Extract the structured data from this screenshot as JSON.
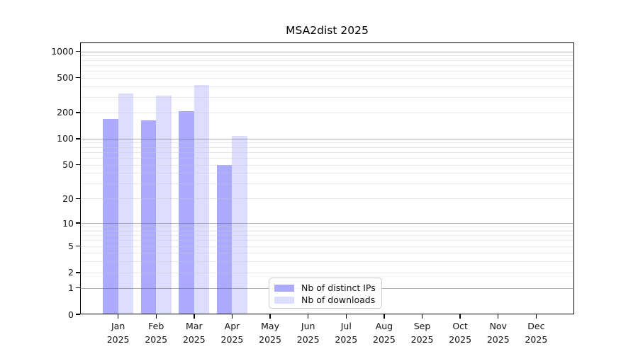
{
  "chart_data": {
    "type": "bar",
    "title": "MSA2dist 2025",
    "categories": [
      "Jan",
      "Feb",
      "Mar",
      "Apr",
      "May",
      "Jun",
      "Jul",
      "Aug",
      "Sep",
      "Oct",
      "Nov",
      "Dec"
    ],
    "year": "2025",
    "series": [
      {
        "name": "Nb of distinct IPs",
        "color": "#aaaaff",
        "values": [
          170,
          161,
          207,
          50,
          0,
          0,
          0,
          0,
          0,
          0,
          0,
          0
        ]
      },
      {
        "name": "Nb of downloads",
        "color": "#ddddff",
        "values": [
          328,
          310,
          415,
          108,
          0,
          0,
          0,
          0,
          0,
          0,
          0,
          0
        ]
      }
    ],
    "yscale": "log1p",
    "ylabel": "",
    "xlabel": "",
    "yticks": [
      0,
      1,
      2,
      5,
      10,
      20,
      50,
      100,
      200,
      500,
      1000
    ],
    "ylim": [
      0,
      1265
    ],
    "grid": {
      "major": [
        1,
        10,
        100,
        1000
      ],
      "minor": [
        2,
        3,
        4,
        5,
        6,
        7,
        8,
        9,
        20,
        30,
        40,
        50,
        60,
        70,
        80,
        90,
        200,
        300,
        400,
        500,
        600,
        700,
        800,
        900
      ]
    },
    "legend_position": "lower-center"
  },
  "colors": {
    "bar_distinct_ips": "#aaaaff",
    "bar_downloads": "#ddddff",
    "grid_major": "#b0b0b0",
    "grid_minor": "#ebebeb",
    "axis": "#000000",
    "background": "#ffffff"
  }
}
